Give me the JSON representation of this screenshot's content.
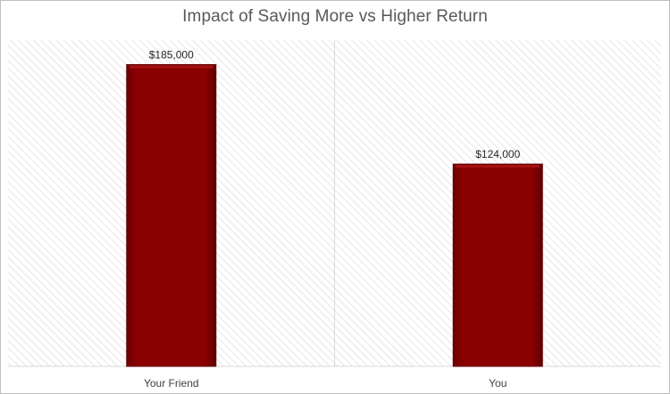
{
  "chart_data": {
    "type": "bar",
    "title": "Impact of Saving More vs Higher Return",
    "categories": [
      "Your Friend",
      "You"
    ],
    "values": [
      185000,
      124000
    ],
    "data_labels": [
      "$185,000",
      "$124,000"
    ],
    "ylim": [
      0,
      200000
    ],
    "xlabel": "",
    "ylabel": "",
    "grid": false,
    "legend": "none",
    "colors": {
      "bar_fill": "#8b0000",
      "bar_highlight": "#a31212",
      "bar_shadow": "#5e0000",
      "plot_hatch": "#e6e6e6",
      "divider": "#d9d9d9",
      "axis_line": "#d9d9d9"
    }
  }
}
